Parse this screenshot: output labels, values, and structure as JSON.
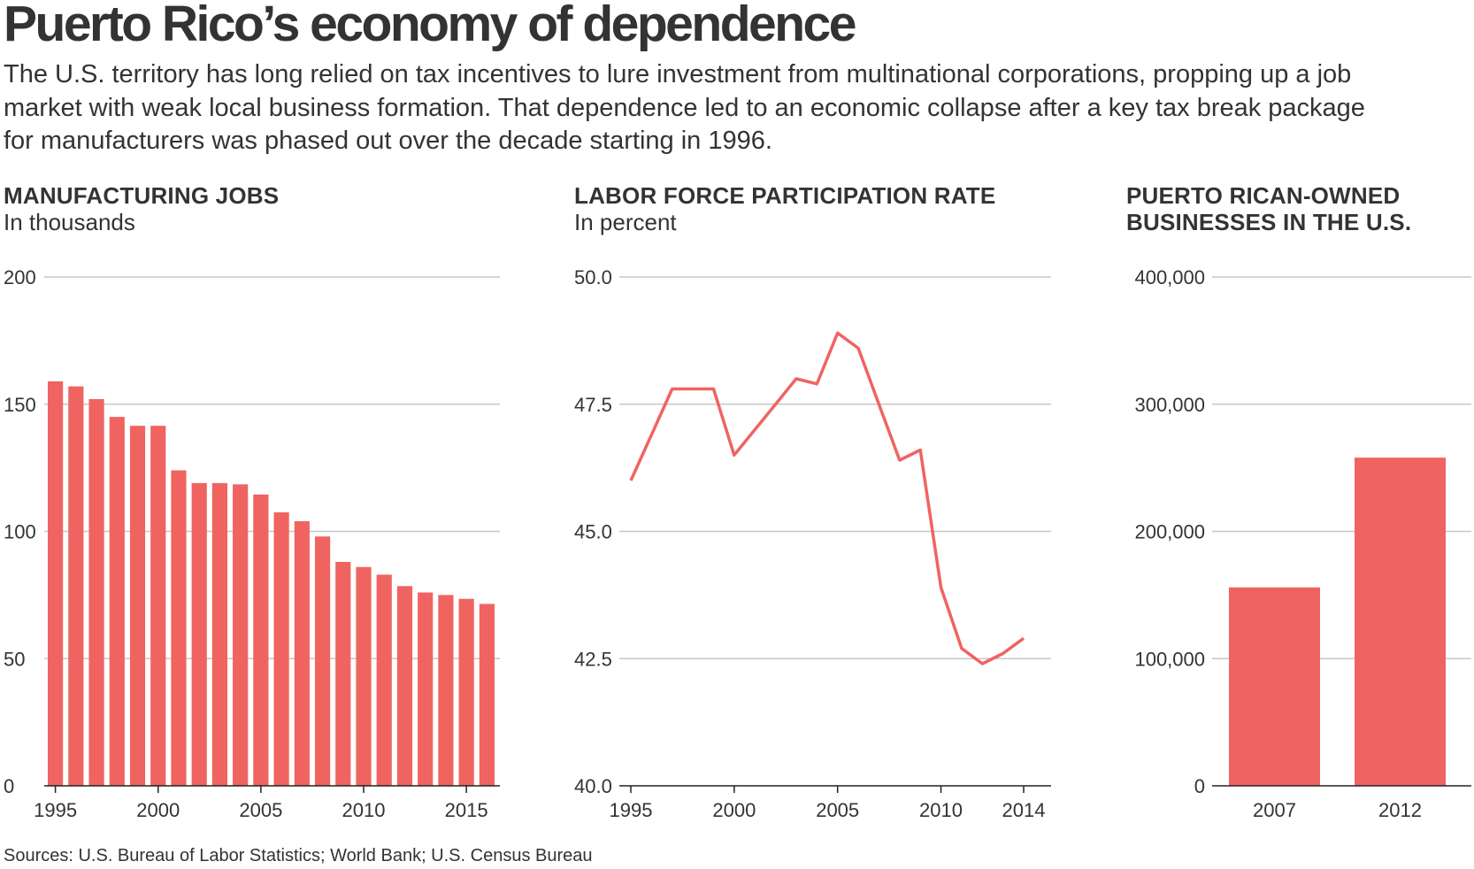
{
  "header": {
    "title": "Puerto Rico’s economy of dependence",
    "description": "The U.S. territory has long relied on tax incentives to lure investment from multinational corporations, propping up a job market with weak local business formation. That dependence led to an economic collapse after a key tax break package for manufacturers was phased out over the decade starting in 1996."
  },
  "colors": {
    "accent": "#ef6461",
    "grid": "#c8c8c8",
    "text": "#333333"
  },
  "chart_data": [
    {
      "id": "manufacturing",
      "type": "bar",
      "title": "MANUFACTURING JOBS",
      "subtitle": "In thousands",
      "categories": [
        1995,
        1996,
        1997,
        1998,
        1999,
        2000,
        2001,
        2002,
        2003,
        2004,
        2005,
        2006,
        2007,
        2008,
        2009,
        2010,
        2011,
        2012,
        2013,
        2014,
        2015,
        2016
      ],
      "values": [
        159,
        157,
        152,
        145,
        141.5,
        141.5,
        124,
        119,
        119,
        118.5,
        114.5,
        107.5,
        104,
        98,
        88,
        86,
        83,
        78.5,
        76,
        75,
        73.5,
        71.5
      ],
      "ylim": [
        0,
        200
      ],
      "yticks": [
        "0",
        "50",
        "100",
        "150",
        "200"
      ],
      "xticks": [
        "1995",
        "2000",
        "2005",
        "2010",
        "2015"
      ],
      "grid": true
    },
    {
      "id": "labor",
      "type": "line",
      "title": "LABOR FORCE PARTICIPATION RATE",
      "subtitle": "In percent",
      "x": [
        1995,
        1996,
        1997,
        1998,
        1999,
        2000,
        2001,
        2002,
        2003,
        2004,
        2005,
        2006,
        2007,
        2008,
        2009,
        2010,
        2011,
        2012,
        2013,
        2014
      ],
      "values": [
        46.0,
        46.9,
        47.8,
        47.8,
        47.8,
        46.5,
        47.0,
        47.5,
        48.0,
        47.9,
        48.9,
        48.6,
        47.5,
        46.4,
        46.6,
        43.9,
        42.7,
        42.4,
        42.6,
        42.9
      ],
      "ylim": [
        40.0,
        50.0
      ],
      "yticks": [
        "40.0",
        "42.5",
        "45.0",
        "47.5",
        "50.0"
      ],
      "xticks": [
        "1995",
        "2000",
        "2005",
        "2010",
        "2014"
      ],
      "grid": true
    },
    {
      "id": "businesses",
      "type": "bar",
      "title": "PUERTO RICAN-OWNED BUSINESSES IN THE U.S.",
      "subtitle": "",
      "categories": [
        "2007",
        "2012"
      ],
      "values": [
        156000,
        258000
      ],
      "ylim": [
        0,
        400000
      ],
      "yticks": [
        "0",
        "100,000",
        "200,000",
        "300,000",
        "400,000"
      ],
      "grid": true
    }
  ],
  "source": "Sources: U.S. Bureau of Labor Statistics; World Bank; U.S. Census Bureau"
}
